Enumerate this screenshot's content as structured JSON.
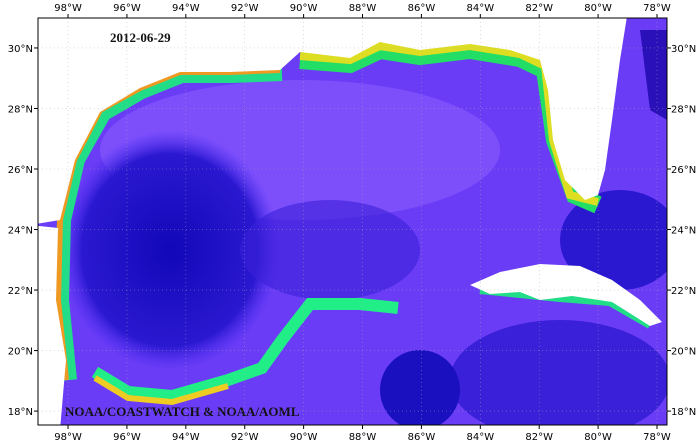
{
  "map": {
    "date": "2012-06-29",
    "credit": "NOAA/COASTWATCH & NOAA/AOML",
    "lonlim": [
      -99.02,
      -77.66
    ],
    "latlim": [
      17.54,
      30.99
    ],
    "lon_ticks": [
      {
        "value": -98,
        "label": "98°W"
      },
      {
        "value": -96,
        "label": "96°W"
      },
      {
        "value": -94,
        "label": "94°W"
      },
      {
        "value": -92,
        "label": "92°W"
      },
      {
        "value": -90,
        "label": "90°W"
      },
      {
        "value": -88,
        "label": "88°W"
      },
      {
        "value": -86,
        "label": "86°W"
      },
      {
        "value": -84,
        "label": "84°W"
      },
      {
        "value": -82,
        "label": "82°W"
      },
      {
        "value": -80,
        "label": "80°W"
      },
      {
        "value": -78,
        "label": "78°W"
      }
    ],
    "lat_ticks": [
      {
        "value": 30,
        "label": "30°N"
      },
      {
        "value": 28,
        "label": "28°N"
      },
      {
        "value": 26,
        "label": "26°N"
      },
      {
        "value": 24,
        "label": "24°N"
      },
      {
        "value": 22,
        "label": "22°N"
      },
      {
        "value": 20,
        "label": "20°N"
      },
      {
        "value": 18,
        "label": "18°N"
      }
    ]
  }
}
